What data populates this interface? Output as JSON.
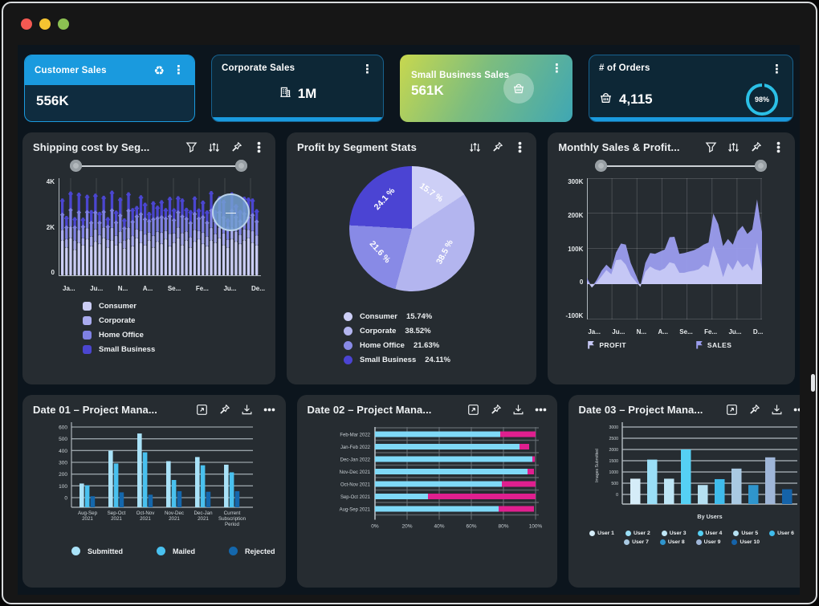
{
  "titlebar": {
    "buttons": [
      "close",
      "minimize",
      "maximize"
    ]
  },
  "colors": {
    "accent_blue": "#1a9ade",
    "ring_cyan": "#2bc0e6",
    "card3_gradient": [
      "#c8d84e",
      "#3fa7b4"
    ],
    "panel_bg": "#262c31",
    "dashboard_bg": "#0c151d"
  },
  "cards": [
    {
      "title": "Customer Sales",
      "value": "556K",
      "icon": "recycle-icon",
      "menu": "kebab-menu"
    },
    {
      "title": "Corporate Sales",
      "value": "1M",
      "icon": "building-icon",
      "menu": "kebab-menu"
    },
    {
      "title": "Small Business Sales",
      "value": "561K",
      "icon": "basket-icon",
      "menu": "kebab-menu"
    },
    {
      "title": "# of Orders",
      "value": "4,115",
      "icon": "basket-icon",
      "menu": "kebab-menu",
      "progress": "98%"
    }
  ],
  "panels": [
    {
      "title": "Shipping cost by Seg...",
      "toolbar": [
        "filter-icon",
        "sliders-icon",
        "pin-icon",
        "kebab-icon"
      ],
      "has_range_slider": true,
      "overlay_button": "—"
    },
    {
      "title": "Profit by Segment Stats",
      "toolbar": [
        "sliders-icon",
        "pin-icon",
        "kebab-icon"
      ]
    },
    {
      "title": "Monthly Sales & Profit...",
      "toolbar": [
        "filter-icon",
        "sliders-icon",
        "pin-icon",
        "kebab-icon"
      ],
      "has_range_slider": true
    },
    {
      "title": "Date 01 – Project Mana...",
      "toolbar": [
        "expand-icon",
        "pin-icon",
        "download-icon",
        "ellipsis-icon"
      ]
    },
    {
      "title": "Date 02 – Project Mana...",
      "toolbar": [
        "expand-icon",
        "pin-icon",
        "download-icon",
        "ellipsis-icon"
      ]
    },
    {
      "title": "Date 03 – Project Mana...",
      "toolbar": [
        "expand-icon",
        "pin-icon",
        "download-icon",
        "ellipsis-icon"
      ]
    }
  ],
  "chart_data": [
    {
      "id": "shipping_cost_by_segment",
      "type": "bar",
      "stacked": true,
      "title": "Shipping cost by Seg...",
      "ylim": [
        0,
        4000
      ],
      "yticks": [
        "4K",
        "2K",
        "0"
      ],
      "xticklabels": [
        "Ja...",
        "Ju...",
        "N...",
        "A...",
        "Se...",
        "Fe...",
        "Ju...",
        "De..."
      ],
      "legend_position": "bottom-left-vertical",
      "grid": true,
      "series": [
        {
          "name": "Consumer",
          "color": "#cbcdf4",
          "values": [
            1500,
            1200,
            1600,
            1100,
            1400,
            1300,
            1550,
            1250,
            1450,
            1350,
            1600,
            1200,
            1500,
            1300,
            1400,
            1150,
            1550,
            1250,
            1600,
            1400,
            1300,
            1500,
            1200,
            1450,
            1350,
            1550,
            1250,
            1400,
            1600,
            1300,
            1500,
            1200,
            1450,
            1550,
            1350,
            1250,
            1500,
            1400,
            1600,
            1300,
            1200,
            1550,
            1450,
            1350,
            1500,
            1600,
            1400,
            1300
          ]
        },
        {
          "name": "Corporate",
          "color": "#a9abee",
          "values": [
            450,
            350,
            500,
            400,
            550,
            300,
            480,
            420,
            520,
            380,
            460,
            340,
            540,
            400,
            480,
            360,
            500,
            440,
            380,
            520,
            460,
            340,
            500,
            420,
            480,
            360,
            540,
            400,
            460,
            520,
            380,
            440,
            500,
            360,
            480,
            420,
            540,
            380,
            460,
            500,
            340,
            520,
            440,
            400,
            480,
            360,
            500,
            420
          ]
        },
        {
          "name": "Home Office",
          "color": "#7f81e3",
          "values": [
            650,
            500,
            700,
            550,
            750,
            480,
            680,
            580,
            720,
            520,
            660,
            540,
            740,
            560,
            680,
            500,
            720,
            600,
            540,
            700,
            640,
            480,
            700,
            580,
            660,
            520,
            740,
            560,
            640,
            700,
            540,
            600,
            680,
            520,
            660,
            580,
            740,
            540,
            640,
            680,
            480,
            700,
            600,
            560,
            660,
            520,
            680,
            580
          ]
        },
        {
          "name": "Small Business",
          "color": "#4b46d0",
          "values": [
            700,
            500,
            800,
            450,
            850,
            400,
            750,
            550,
            820,
            480,
            700,
            420,
            860,
            520,
            780,
            440,
            800,
            600,
            460,
            820,
            720,
            400,
            780,
            540,
            740,
            460,
            840,
            520,
            700,
            780,
            480,
            560,
            760,
            440,
            720,
            540,
            840,
            480,
            700,
            760,
            420,
            800,
            560,
            500,
            740,
            860,
            720,
            540
          ]
        }
      ]
    },
    {
      "id": "profit_by_segment",
      "type": "pie",
      "title": "Profit by Segment Stats",
      "slices": [
        {
          "label": "Consumer",
          "pct": 15.74,
          "display": "15.7 %",
          "color": "#cdcff6"
        },
        {
          "label": "Corporate",
          "pct": 38.52,
          "display": "38.5 %",
          "color": "#b3b5ef"
        },
        {
          "label": "Home Office",
          "pct": 21.63,
          "display": "21.6 %",
          "color": "#888ae6"
        },
        {
          "label": "Small Business",
          "pct": 24.11,
          "display": "24.1 %",
          "color": "#4b44d3"
        }
      ],
      "legend": [
        {
          "label": "Consumer",
          "pct_label": "15.74%",
          "color": "#cdcff6"
        },
        {
          "label": "Corporate",
          "pct_label": "38.52%",
          "color": "#b3b5ef"
        },
        {
          "label": "Home Office",
          "pct_label": "21.63%",
          "color": "#888ae6"
        },
        {
          "label": "Small Business",
          "pct_label": "24.11%",
          "color": "#4b44d3"
        }
      ]
    },
    {
      "id": "monthly_sales_profit",
      "type": "area",
      "title": "Monthly Sales & Profit...",
      "ylim": [
        -100000,
        300000
      ],
      "yticks": [
        "300K",
        "200K",
        "100K",
        "0",
        "-100K"
      ],
      "xticklabels": [
        "Ja...",
        "Ju...",
        "N...",
        "A...",
        "Se...",
        "Fe...",
        "Ju...",
        "D..."
      ],
      "grid": true,
      "legend_position": "bottom",
      "series": [
        {
          "name": "SALES",
          "color": "#9a9cec",
          "values_k": [
            18,
            -8,
            12,
            38,
            55,
            42,
            90,
            115,
            112,
            60,
            28,
            -5,
            60,
            88,
            86,
            92,
            98,
            133,
            134,
            86,
            88,
            92,
            96,
            103,
            112,
            118,
            200,
            170,
            108,
            128,
            112,
            150,
            165,
            142,
            155,
            240,
            148
          ]
        },
        {
          "name": "PROFIT",
          "color": "#c7c9f6",
          "values_k": [
            10,
            -10,
            5,
            22,
            40,
            28,
            68,
            70,
            55,
            25,
            8,
            -8,
            35,
            50,
            42,
            38,
            45,
            62,
            58,
            32,
            32,
            36,
            38,
            42,
            55,
            48,
            108,
            70,
            20,
            60,
            40,
            68,
            48,
            58,
            38,
            118,
            42
          ]
        }
      ]
    },
    {
      "id": "date01_project",
      "type": "bar",
      "grouped": true,
      "title": "Date 01 – Project Mana...",
      "ylim": [
        0,
        600
      ],
      "yticks": [
        "600",
        "500",
        "400",
        "300",
        "200",
        "100",
        "0"
      ],
      "categories": [
        "Aug-Sep\n2021",
        "Sep-Oct\n2021",
        "Oct-Nov\n2021",
        "Nov-Dec\n2021",
        "Dec-Jan\n2021",
        "Current\nSubscription\nPeriod"
      ],
      "grid": true,
      "legend_position": "bottom",
      "series": [
        {
          "name": "Submitted",
          "color": "#a9e2f8",
          "values": [
            120,
            400,
            545,
            310,
            345,
            280
          ]
        },
        {
          "name": "Mailed",
          "color": "#49c1ef",
          "values": [
            105,
            290,
            385,
            150,
            275,
            215
          ]
        },
        {
          "name": "Rejected",
          "color": "#1467ac",
          "values": [
            12,
            45,
            25,
            55,
            50,
            55
          ]
        }
      ]
    },
    {
      "id": "date02_project",
      "type": "hbar",
      "stacked": true,
      "title": "Date 02 – Project Mana...",
      "xlim": [
        0,
        100
      ],
      "xticks": [
        "0%",
        "20%",
        "40%",
        "60%",
        "80%",
        "100%"
      ],
      "categories": [
        "Feb-Mar 2022",
        "Jan-Feb 2022",
        "Dec-Jan 2022",
        "Nov-Dec 2021",
        "Oct-Nov 2021",
        "Sep-Oct 2021",
        "Aug-Sep 2021"
      ],
      "grid": true,
      "series": [
        {
          "color": "#7fd9f7",
          "values": [
            78,
            90,
            98,
            95,
            79,
            33,
            77
          ]
        },
        {
          "color": "#e01f8f",
          "values": [
            22,
            6,
            1.5,
            4,
            21,
            67,
            22
          ]
        }
      ]
    },
    {
      "id": "date03_project",
      "type": "bar",
      "title": "Date 03 – Project Mana...",
      "ylabel": "Images Submitted",
      "xlabel": "By Users",
      "ylim": [
        0,
        3000
      ],
      "yticks": [
        "3000",
        "2500",
        "2000",
        "1500",
        "1000",
        "500",
        "0"
      ],
      "categories": [
        "User 1",
        "User 2",
        "User 3",
        "User 4",
        "User 5",
        "User 6",
        "User 7",
        "User 8",
        "User 9",
        "User 10"
      ],
      "values": [
        700,
        1550,
        700,
        2000,
        420,
        680,
        1150,
        420,
        1650,
        230
      ],
      "colors": [
        "#d5ecf8",
        "#9adef6",
        "#bfe6f6",
        "#55d0f4",
        "#b5e0f1",
        "#3fbcec",
        "#a9c9e2",
        "#2f95cd",
        "#9fb6d8",
        "#1563a9"
      ],
      "grid": true,
      "legend_rows": [
        [
          "User 1",
          "User 2",
          "User 3",
          "User 4",
          "User 5",
          "User 6"
        ],
        [
          "User 7",
          "User 8",
          "User 9",
          "User 10"
        ]
      ]
    }
  ]
}
